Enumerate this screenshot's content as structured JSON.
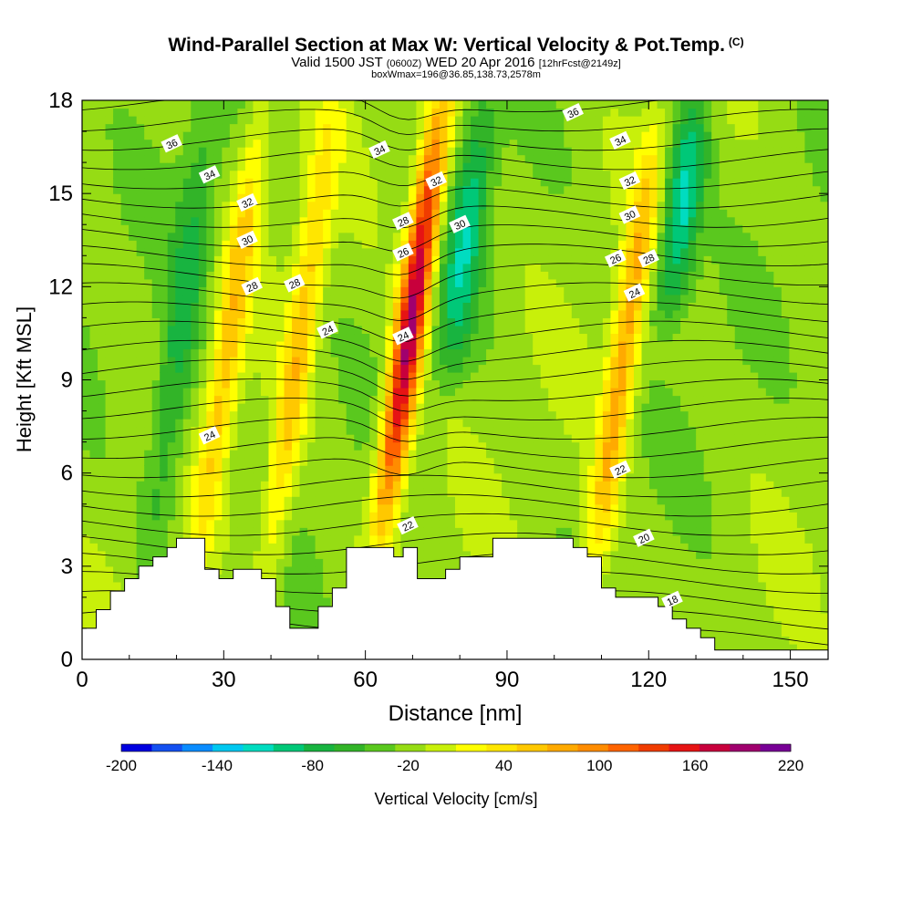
{
  "titles": {
    "main": "Wind-Parallel Section at Max W: Vertical Velocity & Pot.Temp.",
    "main_mark": "(C)",
    "valid_prefix": "Valid 1500 JST",
    "valid_utc": "(0600Z)",
    "valid_date": "WED 20 Apr 2016",
    "fcst": "[12hrFcst@2149z]",
    "box": "boxWmax=196@36.85,138.73,2578m"
  },
  "chart_data": {
    "type": "heatmap",
    "xlabel": "Distance [nm]",
    "ylabel": "Height [Kft MSL]",
    "xlim": [
      0,
      158
    ],
    "ylim": [
      0,
      18
    ],
    "xticks": [
      0,
      30,
      60,
      90,
      120,
      150
    ],
    "yticks": [
      0,
      3,
      6,
      9,
      12,
      15,
      18
    ],
    "colorbar": {
      "label": "Vertical Velocity [cm/s]",
      "min": -200,
      "max": 220,
      "step": 20,
      "tick_labels": [
        -200,
        -140,
        -80,
        -20,
        40,
        100,
        160,
        220
      ],
      "colors": [
        "#0000e0",
        "#1450f0",
        "#0a8cff",
        "#00c8f0",
        "#00dcc0",
        "#00c878",
        "#18b440",
        "#32b428",
        "#5ac81e",
        "#96dc14",
        "#c8f00a",
        "#ffff00",
        "#ffe600",
        "#ffc800",
        "#ffaa00",
        "#ff8c00",
        "#ff6400",
        "#f03c00",
        "#e61414",
        "#c8003c",
        "#a0006e",
        "#780096"
      ]
    },
    "updraft_cores": [
      {
        "x": 30,
        "y_range": [
          3,
          18
        ],
        "w_max": 80
      },
      {
        "x": 45,
        "y_range": [
          2,
          18
        ],
        "w_max": 80
      },
      {
        "x": 68,
        "y_range": [
          4,
          18
        ],
        "w_max": 220
      },
      {
        "x": 114,
        "y_range": [
          2,
          17
        ],
        "w_max": 100
      }
    ],
    "downdraft_cores": [
      {
        "x": 22,
        "y_range": [
          3,
          18
        ],
        "w_min": -60
      },
      {
        "x": 80,
        "y_range": [
          9,
          18
        ],
        "w_min": -80
      },
      {
        "x": 125,
        "y_range": [
          11,
          18
        ],
        "w_min": -100
      }
    ],
    "theta_contour_labels": [
      {
        "value": 36,
        "x": 19,
        "y": 16.6
      },
      {
        "value": 34,
        "x": 27,
        "y": 15.6
      },
      {
        "value": 32,
        "x": 35,
        "y": 14.7
      },
      {
        "value": 30,
        "x": 35,
        "y": 13.5
      },
      {
        "value": 28,
        "x": 36,
        "y": 12.0
      },
      {
        "value": 28,
        "x": 45,
        "y": 12.1
      },
      {
        "value": 24,
        "x": 52,
        "y": 10.6
      },
      {
        "value": 24,
        "x": 27,
        "y": 7.2
      },
      {
        "value": 34,
        "x": 63,
        "y": 16.4
      },
      {
        "value": 28,
        "x": 68,
        "y": 14.1
      },
      {
        "value": 26,
        "x": 68,
        "y": 13.1
      },
      {
        "value": 24,
        "x": 68,
        "y": 10.4
      },
      {
        "value": 32,
        "x": 75,
        "y": 15.4
      },
      {
        "value": 30,
        "x": 80,
        "y": 14.0
      },
      {
        "value": 22,
        "x": 69,
        "y": 4.3
      },
      {
        "value": 36,
        "x": 104,
        "y": 17.6
      },
      {
        "value": 34,
        "x": 114,
        "y": 16.7
      },
      {
        "value": 32,
        "x": 116,
        "y": 15.4
      },
      {
        "value": 30,
        "x": 116,
        "y": 14.3
      },
      {
        "value": 26,
        "x": 113,
        "y": 12.9
      },
      {
        "value": 28,
        "x": 120,
        "y": 12.9
      },
      {
        "value": 24,
        "x": 117,
        "y": 11.8
      },
      {
        "value": 22,
        "x": 114,
        "y": 6.1
      },
      {
        "value": 20,
        "x": 119,
        "y": 3.9
      },
      {
        "value": 18,
        "x": 125,
        "y": 1.9
      }
    ],
    "terrain": [
      [
        0,
        1
      ],
      [
        3,
        1
      ],
      [
        3,
        1.6
      ],
      [
        6,
        1.6
      ],
      [
        6,
        2.2
      ],
      [
        9,
        2.2
      ],
      [
        9,
        2.6
      ],
      [
        12,
        2.6
      ],
      [
        12,
        3
      ],
      [
        15,
        3
      ],
      [
        15,
        3.3
      ],
      [
        18,
        3.3
      ],
      [
        18,
        3.6
      ],
      [
        20,
        3.6
      ],
      [
        20,
        3.9
      ],
      [
        26,
        3.9
      ],
      [
        26,
        2.9
      ],
      [
        29,
        2.9
      ],
      [
        29,
        2.6
      ],
      [
        32,
        2.6
      ],
      [
        32,
        2.9
      ],
      [
        38,
        2.9
      ],
      [
        38,
        2.6
      ],
      [
        41,
        2.6
      ],
      [
        41,
        1.7
      ],
      [
        44,
        1.7
      ],
      [
        44,
        1
      ],
      [
        50,
        1
      ],
      [
        50,
        1.7
      ],
      [
        53,
        1.7
      ],
      [
        53,
        2.3
      ],
      [
        56,
        2.3
      ],
      [
        56,
        3.6
      ],
      [
        66,
        3.6
      ],
      [
        66,
        3.3
      ],
      [
        68,
        3.3
      ],
      [
        68,
        3.6
      ],
      [
        71,
        3.6
      ],
      [
        71,
        2.6
      ],
      [
        77,
        2.6
      ],
      [
        77,
        2.9
      ],
      [
        80,
        2.9
      ],
      [
        80,
        3.3
      ],
      [
        87,
        3.3
      ],
      [
        87,
        3.9
      ],
      [
        104,
        3.9
      ],
      [
        104,
        3.6
      ],
      [
        107,
        3.6
      ],
      [
        107,
        3.3
      ],
      [
        110,
        3.3
      ],
      [
        110,
        2.3
      ],
      [
        113,
        2.3
      ],
      [
        113,
        2
      ],
      [
        122,
        2
      ],
      [
        122,
        1.7
      ],
      [
        125,
        1.7
      ],
      [
        125,
        1.3
      ],
      [
        128,
        1.3
      ],
      [
        128,
        1
      ],
      [
        131,
        1
      ],
      [
        131,
        0.7
      ],
      [
        134,
        0.7
      ],
      [
        134,
        0.3
      ],
      [
        158,
        0.3
      ],
      [
        158,
        0
      ]
    ]
  }
}
